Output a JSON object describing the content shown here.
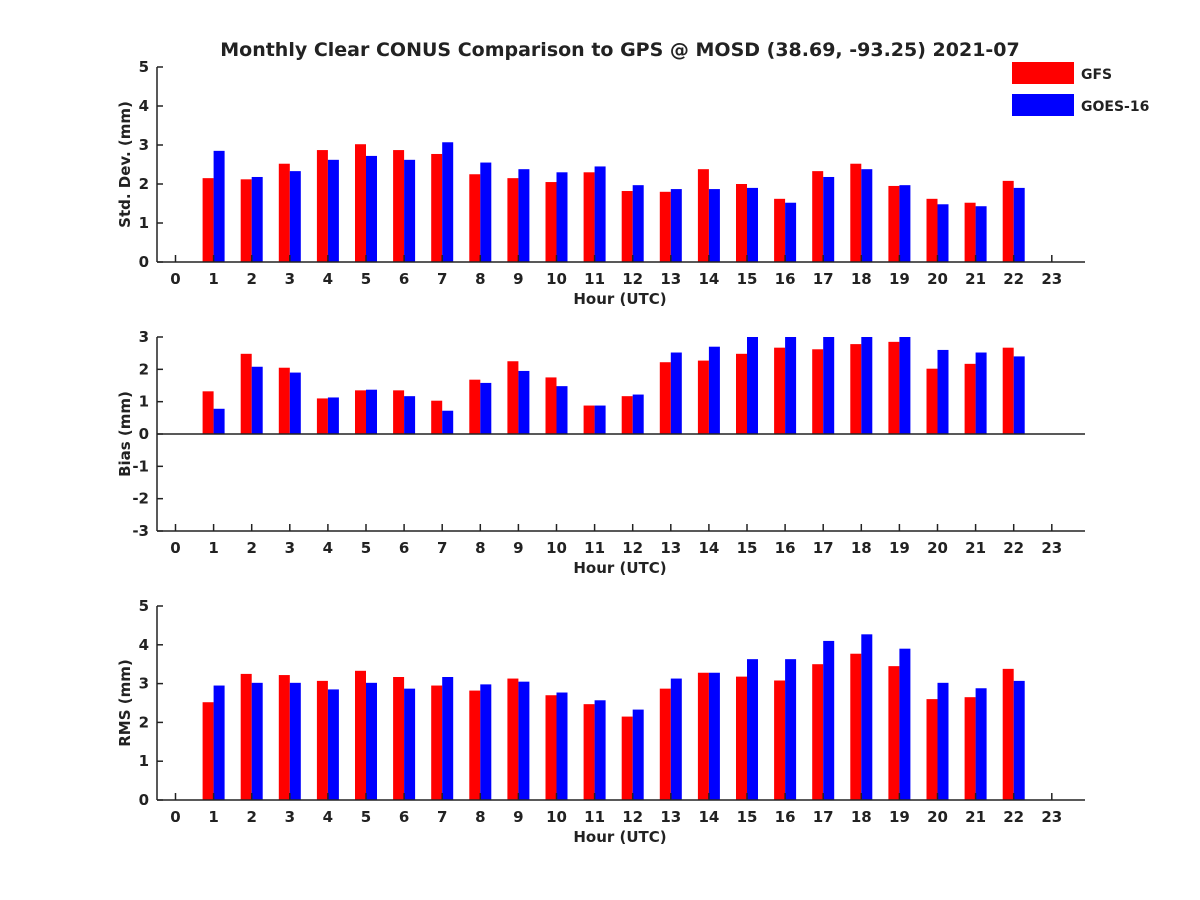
{
  "title": "Monthly Clear CONUS Comparison to GPS @ MOSD (38.69, -93.25) 2021-07",
  "colors": {
    "GFS": "#ff0000",
    "GOES-16": "#0000ff"
  },
  "legend": {
    "placement": "top-right",
    "entries": [
      "GFS",
      "GOES-16"
    ]
  },
  "chart_data": [
    {
      "type": "bar",
      "ylabel": "Std. Dev. (mm)",
      "xlabel": "Hour (UTC)",
      "ylim": [
        0,
        5
      ],
      "yticks": [
        0,
        1,
        2,
        3,
        4,
        5
      ],
      "xticks": [
        0,
        1,
        2,
        3,
        4,
        5,
        6,
        7,
        8,
        9,
        10,
        11,
        12,
        13,
        14,
        15,
        16,
        17,
        18,
        19,
        20,
        21,
        22,
        23
      ],
      "x": [
        1,
        2,
        3,
        4,
        5,
        6,
        7,
        8,
        9,
        10,
        11,
        12,
        13,
        14,
        15,
        16,
        17,
        18,
        19,
        20,
        21,
        22
      ],
      "series": [
        {
          "name": "GFS",
          "values": [
            2.15,
            2.12,
            2.52,
            2.87,
            3.02,
            2.87,
            2.77,
            2.25,
            2.15,
            2.05,
            2.3,
            1.82,
            1.8,
            2.38,
            2.0,
            1.62,
            2.33,
            2.52,
            1.95,
            1.62,
            1.52,
            2.08
          ]
        },
        {
          "name": "GOES-16",
          "values": [
            2.85,
            2.18,
            2.33,
            2.62,
            2.72,
            2.62,
            3.07,
            2.55,
            2.38,
            2.3,
            2.45,
            1.97,
            1.87,
            1.87,
            1.9,
            1.52,
            2.18,
            2.38,
            1.97,
            1.48,
            1.43,
            1.9
          ]
        }
      ]
    },
    {
      "type": "bar",
      "ylabel": "Bias (mm)",
      "xlabel": "Hour (UTC)",
      "ylim": [
        -3,
        3
      ],
      "yticks": [
        -3,
        -2,
        -1,
        0,
        1,
        2,
        3
      ],
      "xticks": [
        0,
        1,
        2,
        3,
        4,
        5,
        6,
        7,
        8,
        9,
        10,
        11,
        12,
        13,
        14,
        15,
        16,
        17,
        18,
        19,
        20,
        21,
        22,
        23
      ],
      "x": [
        1,
        2,
        3,
        4,
        5,
        6,
        7,
        8,
        9,
        10,
        11,
        12,
        13,
        14,
        15,
        16,
        17,
        18,
        19,
        20,
        21,
        22
      ],
      "series": [
        {
          "name": "GFS",
          "values": [
            1.32,
            2.48,
            2.05,
            1.1,
            1.35,
            1.35,
            1.03,
            1.68,
            2.25,
            1.75,
            0.88,
            1.17,
            2.22,
            2.27,
            2.48,
            2.67,
            2.62,
            2.78,
            2.85,
            2.02,
            2.17,
            2.67
          ]
        },
        {
          "name": "GOES-16",
          "values": [
            0.78,
            2.08,
            1.9,
            1.13,
            1.37,
            1.17,
            0.72,
            1.58,
            1.95,
            1.48,
            0.88,
            1.22,
            2.52,
            2.7,
            3.0,
            3.0,
            3.0,
            3.0,
            3.0,
            2.6,
            2.52,
            2.4
          ]
        }
      ]
    },
    {
      "type": "bar",
      "ylabel": "RMS (mm)",
      "xlabel": "Hour (UTC)",
      "ylim": [
        0,
        5
      ],
      "yticks": [
        0,
        1,
        2,
        3,
        4,
        5
      ],
      "xticks": [
        0,
        1,
        2,
        3,
        4,
        5,
        6,
        7,
        8,
        9,
        10,
        11,
        12,
        13,
        14,
        15,
        16,
        17,
        18,
        19,
        20,
        21,
        22,
        23
      ],
      "x": [
        1,
        2,
        3,
        4,
        5,
        6,
        7,
        8,
        9,
        10,
        11,
        12,
        13,
        14,
        15,
        16,
        17,
        18,
        19,
        20,
        21,
        22
      ],
      "series": [
        {
          "name": "GFS",
          "values": [
            2.52,
            3.25,
            3.22,
            3.07,
            3.33,
            3.17,
            2.95,
            2.82,
            3.13,
            2.7,
            2.47,
            2.15,
            2.87,
            3.28,
            3.18,
            3.08,
            3.5,
            3.77,
            3.45,
            2.6,
            2.65,
            3.38
          ]
        },
        {
          "name": "GOES-16",
          "values": [
            2.95,
            3.02,
            3.02,
            2.85,
            3.02,
            2.87,
            3.17,
            2.98,
            3.05,
            2.77,
            2.57,
            2.33,
            3.13,
            3.28,
            3.63,
            3.63,
            4.1,
            4.27,
            3.9,
            3.02,
            2.88,
            3.07
          ]
        }
      ]
    }
  ]
}
